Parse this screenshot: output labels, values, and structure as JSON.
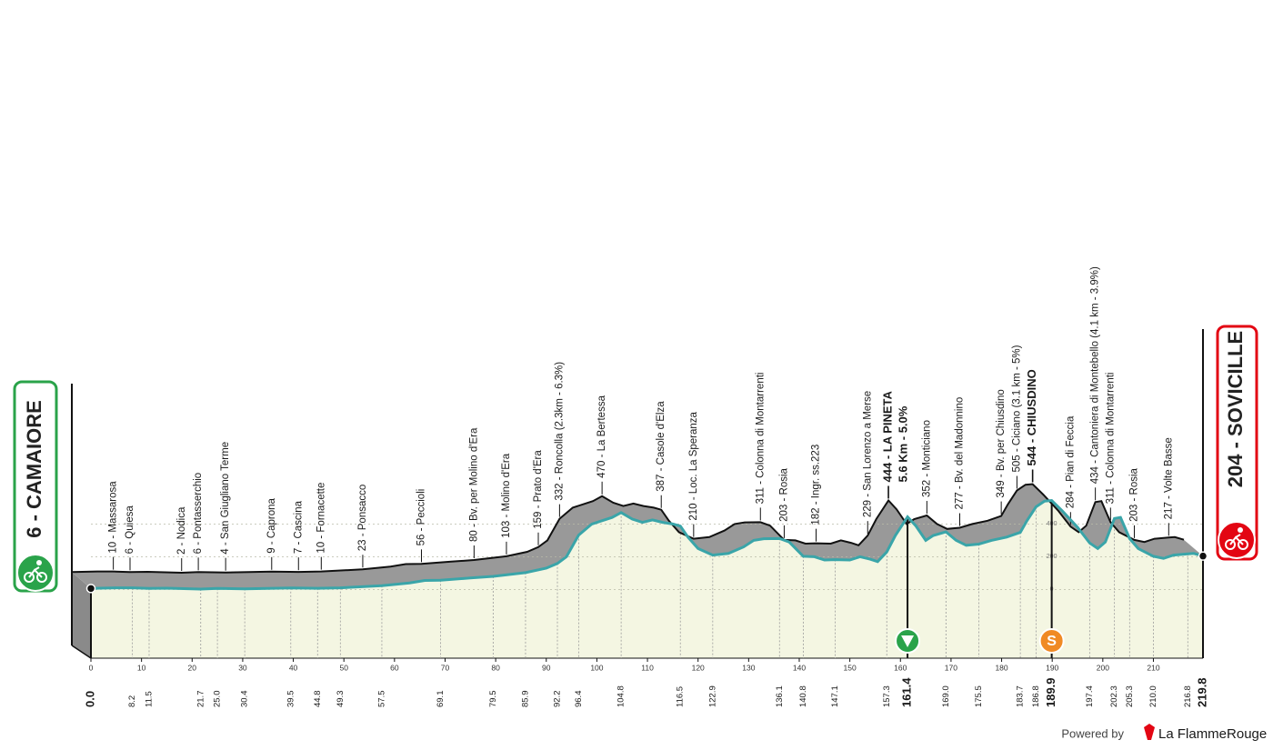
{
  "chart_data": {
    "type": "profile",
    "start": {
      "km": {
        "value": 0,
        "label": "0.0"
      },
      "label": "6 - CAMAIORE"
    },
    "finish": {
      "km": 219.8,
      "label": "204 - SOVICILLE"
    },
    "waypoints": [
      {
        "km": 8.2,
        "label": "10 - Massarosa"
      },
      {
        "km": 11.5,
        "label": "6 - Quiesa"
      },
      {
        "km": 21.7,
        "label": "2 - Nodica"
      },
      {
        "km": {
          "value": 25,
          "label": "25.0"
        },
        "label": "6 - Pontasserchio"
      },
      {
        "km": 30.4,
        "label": "4 - San Giugliano Terme"
      },
      {
        "km": 39.5,
        "label": "9 - Caprona"
      },
      {
        "km": 44.8,
        "label": "7 - Cascina"
      },
      {
        "km": 49.3,
        "label": "10 - Fornacette"
      },
      {
        "km": 57.5,
        "label": "23 - Ponsacco"
      },
      {
        "km": 69.1,
        "label": "56 - Peccioli"
      },
      {
        "km": 79.5,
        "label": "80 - Bv. per Molino d'Era"
      },
      {
        "km": 85.9,
        "label": "103 - Molino d'Era"
      },
      {
        "km": 92.2,
        "label": "159 - Prato d'Era"
      },
      {
        "km": 96.4,
        "label": "332 - Roncolla (2.3km - 6.3%)"
      },
      {
        "km": 104.8,
        "label": "470 - La Bertessa"
      },
      {
        "km": 116.5,
        "label": "387 - Casole d'Elza"
      },
      {
        "km": 122.9,
        "label": "210 - Loc. La Speranza"
      },
      {
        "km": 136.1,
        "label": "311 - Colonna di Montarrenti"
      },
      {
        "km": 140.8,
        "label": "203 - Rosia"
      },
      {
        "km": 147.1,
        "label": "182 - Ingr. ss.223"
      },
      {
        "km": 157.3,
        "label": "229 - San Lorenzo a Merse"
      },
      {
        "km": 161.4,
        "label": "444 - LA PINETA",
        "note": "5.6 Km - 5.0%",
        "major": true,
        "icon": "kom"
      },
      {
        "km": {
          "value": 169,
          "label": "169.0"
        },
        "label": "352 - Monticiano"
      },
      {
        "km": 175.5,
        "label": "277 - Bv. del Madonnino"
      },
      {
        "km": 183.7,
        "label": "349 - Bv. per Chiusdino"
      },
      {
        "km": 186.8,
        "label": "505 - Ciciano (3.1 km - 5%)"
      },
      {
        "km": 189.9,
        "label": "544 - CHIUSDINO",
        "major": true,
        "icon": "sprint",
        "icon_label": "S"
      },
      {
        "km": 197.4,
        "label": "284 - Pian di Feccia"
      },
      {
        "km": 202.3,
        "label": "434 - Cantoniera di Montebello (4.1 km - 3.9%)"
      },
      {
        "km": 205.3,
        "label": "311 - Colonna di Montarrenti"
      },
      {
        "km": {
          "value": 210,
          "label": "210.0"
        },
        "label": "203 - Rosia"
      },
      {
        "km": 216.8,
        "label": "217 - Volte Basse"
      }
    ],
    "profile": {
      "km": [
        0,
        5,
        8.2,
        11.5,
        15,
        21.7,
        25,
        30.4,
        35,
        39.5,
        44.8,
        49.3,
        57.5,
        63,
        66,
        69.1,
        75,
        79.5,
        85.9,
        90,
        92.2,
        94,
        96.4,
        99,
        101,
        103,
        104.8,
        107,
        109,
        111,
        113,
        115,
        116.5,
        118,
        120,
        122.9,
        126,
        129,
        131,
        133,
        136.1,
        138,
        140.8,
        143,
        145,
        147.1,
        150,
        152,
        154,
        155.5,
        157.3,
        159,
        161.4,
        163,
        165,
        166.5,
        169,
        171,
        173,
        175.5,
        178,
        181,
        183.7,
        185,
        186.8,
        188.5,
        189.9,
        192,
        195,
        197.4,
        199,
        200.5,
        202.3,
        203.5,
        205.3,
        207,
        210,
        212,
        214,
        216.8,
        218,
        219.8
      ],
      "elevation": [
        6,
        10,
        10,
        6,
        8,
        2,
        6,
        4,
        6,
        9,
        7,
        10,
        23,
        40,
        55,
        56,
        70,
        80,
        103,
        130,
        159,
        200,
        332,
        400,
        420,
        440,
        470,
        430,
        410,
        425,
        410,
        400,
        387,
        320,
        250,
        210,
        220,
        260,
        300,
        310,
        311,
        290,
        203,
        200,
        180,
        182,
        180,
        200,
        185,
        170,
        229,
        330,
        444,
        390,
        300,
        330,
        352,
        300,
        270,
        277,
        300,
        320,
        349,
        420,
        505,
        540,
        544,
        480,
        380,
        284,
        250,
        290,
        434,
        440,
        311,
        250,
        203,
        190,
        210,
        217,
        220,
        204
      ]
    },
    "xlim": [
      0,
      219.8
    ],
    "xticks": [
      0,
      10,
      20,
      30,
      40,
      50,
      60,
      70,
      80,
      90,
      100,
      110,
      120,
      130,
      140,
      150,
      160,
      170,
      180,
      190,
      200,
      210
    ],
    "ylim": [
      -420,
      1000
    ],
    "yticks": [
      0,
      200,
      400
    ],
    "footer": {
      "powered": "Powered by",
      "brand": "La FlammeRouge"
    }
  }
}
